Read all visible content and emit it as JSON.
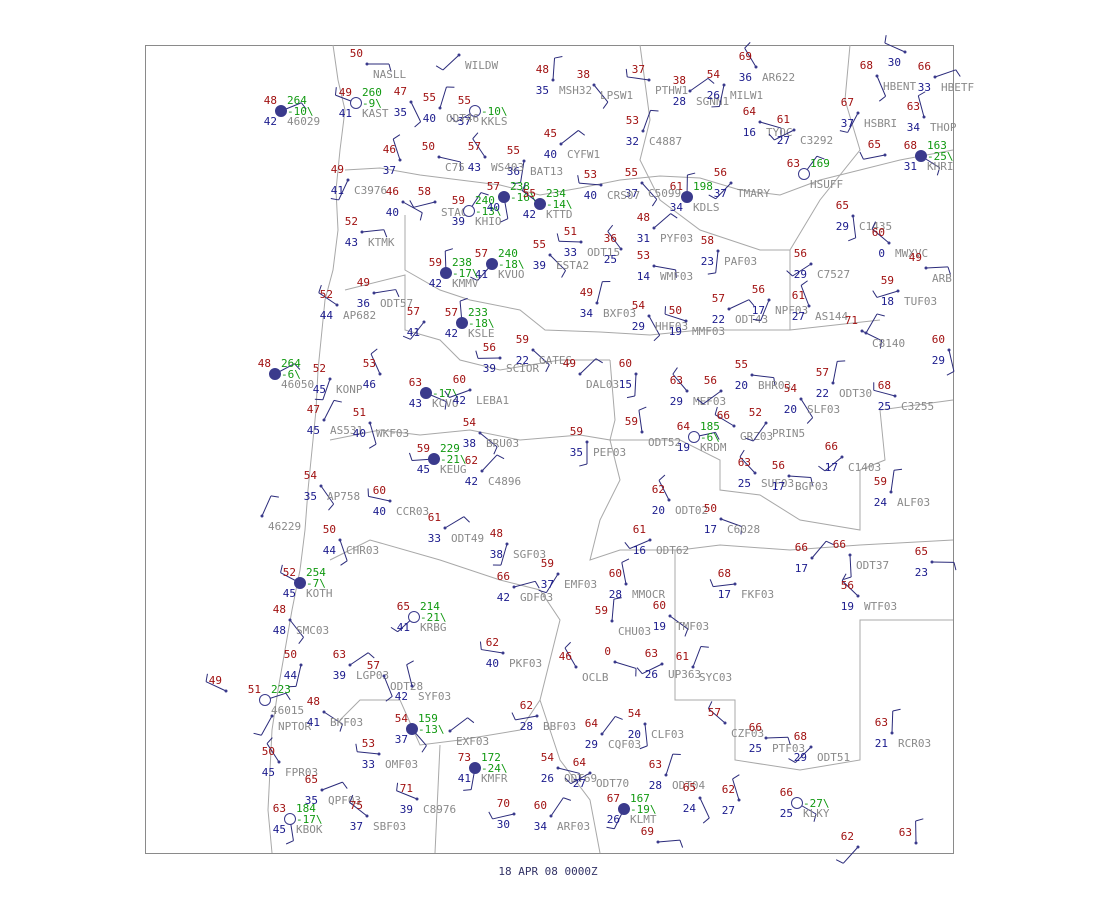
{
  "footer": "18 APR 08  0000Z",
  "stations": [
    {
      "id": "NASLL",
      "t": 50
    },
    {
      "id": "WILDW"
    },
    {
      "id": "MSH32",
      "t": 48,
      "d": 35
    },
    {
      "id": "LPSW1",
      "t": 38
    },
    {
      "id": "PTHW1",
      "t": 37
    },
    {
      "id": "SGNN1",
      "t": 38,
      "d": 28
    },
    {
      "id": "MILW1",
      "t": 54,
      "d": 26
    },
    {
      "id": "AR622",
      "t": 69,
      "d": 36
    },
    {
      "id": "TYOC",
      "t": 64,
      "d": 16
    },
    {
      "id": "C3292",
      "t": 61,
      "d": 27
    },
    {
      "id": "C4887",
      "t": 53,
      "d": 32
    },
    {
      "id": "HBENT",
      "t": 68
    },
    {
      "d": 30
    },
    {
      "id": "HBETF",
      "t": 66,
      "d": 33
    },
    {
      "id": "HSBRI",
      "t": 67,
      "d": 37
    },
    {
      "id": "THOP",
      "t": 63,
      "d": 34
    },
    {
      "id": "KHRI",
      "t": 68,
      "d": 31,
      "p": 163,
      "pt": "-25\\"
    },
    {
      "t": 65
    },
    {
      "id": "HSUFF",
      "t": 63,
      "p": 169
    },
    {
      "id": "C1435",
      "t": 65,
      "d": 29
    },
    {
      "id": "MWXVC",
      "t": 60,
      "d": 0
    },
    {
      "id": "ARB",
      "t": 49
    },
    {
      "id": "TMARY",
      "t": 56,
      "d": 37
    },
    {
      "id": "KDLS",
      "t": 61,
      "d": 34,
      "p": 198
    },
    {
      "id": "C5099",
      "t": 55,
      "d": 37
    },
    {
      "id": "CRS07",
      "t": 53,
      "d": 40
    },
    {
      "id": "CYFW1",
      "t": 45,
      "d": 40
    },
    {
      "id": "BAT13",
      "t": 55,
      "d": 36
    },
    {
      "id": "WS403",
      "t": 57,
      "d": 43
    },
    {
      "id": "C75",
      "t": 50
    },
    {
      "id": "KKLS",
      "t": 55,
      "d": 37,
      "pt": "-10\\"
    },
    {
      "id": "ODT46",
      "t": 55,
      "d": 40
    },
    {
      "t": 47,
      "d": 35
    },
    {
      "id": "KAST",
      "t": 49,
      "d": 41,
      "p": 260,
      "pt": "-9\\"
    },
    {
      "id": "46029",
      "t": 48,
      "d": 42,
      "p": 264,
      "pt": "-10\\"
    },
    {
      "id": "C3976",
      "t": 49,
      "d": 41
    },
    {
      "t": 46,
      "d": 37
    },
    {
      "t": 46,
      "d": 40
    },
    {
      "id": "STA03",
      "t": 58
    },
    {
      "id": "KHIO",
      "t": 59,
      "d": 39,
      "p": 240,
      "pt": "-13\\"
    },
    {
      "t": 57,
      "d": 40,
      "p": 238,
      "pt": "-16\\"
    },
    {
      "id": "KTTD",
      "t": 55,
      "d": 42,
      "p": 234,
      "pt": "-14\\"
    },
    {
      "id": "KTMK",
      "t": 52,
      "d": 43
    },
    {
      "id": "KVUO",
      "t": 57,
      "d": 41,
      "p": 240,
      "pt": "-18\\"
    },
    {
      "id": "KMMV",
      "t": 59,
      "d": 42,
      "p": 238,
      "pt": "-17\\"
    },
    {
      "id": "ESTA2",
      "t": 55,
      "d": 39
    },
    {
      "id": "ODT15",
      "t": 51,
      "d": 33
    },
    {
      "id": "PYF03",
      "t": 48,
      "d": 31
    },
    {
      "id": "PAF03",
      "t": 58,
      "d": 23
    },
    {
      "t": 36,
      "d": 25
    },
    {
      "id": "WMF03",
      "t": 53,
      "d": 14
    },
    {
      "id": "C7527",
      "t": 56,
      "d": 29
    },
    {
      "id": "BXF03",
      "t": 49,
      "d": 34
    },
    {
      "id": "HHF03",
      "t": 54,
      "d": 29
    },
    {
      "id": "MMF03",
      "t": 50,
      "d": 19
    },
    {
      "id": "ODT43",
      "t": 57,
      "d": 22
    },
    {
      "id": "NPF03",
      "t": 56,
      "d": 17
    },
    {
      "id": "AS144",
      "t": 61,
      "d": 27
    },
    {
      "t": 71
    },
    {
      "id": "TUF03",
      "t": 59,
      "d": 18
    },
    {
      "id": "C8140"
    },
    {
      "t": 60,
      "d": 29
    },
    {
      "id": "AP682",
      "t": 52,
      "d": 44
    },
    {
      "id": "ODT57",
      "t": 49,
      "d": 36
    },
    {
      "t": 57,
      "d": 41
    },
    {
      "id": "KSLE",
      "t": 57,
      "d": 42,
      "p": 233,
      "pt": "-18\\"
    },
    {
      "id": "GATES",
      "t": 59,
      "d": 22
    },
    {
      "id": "SCIOR",
      "t": 56,
      "d": 39
    },
    {
      "id": "DAL03",
      "t": 49
    },
    {
      "t": 60,
      "d": 15
    },
    {
      "id": "MEF03",
      "t": 63,
      "d": 29
    },
    {
      "id": "BHR03",
      "t": 55,
      "d": 20
    },
    {
      "t": 56
    },
    {
      "id": "ODT30",
      "t": 57,
      "d": 22
    },
    {
      "id": "SLF03",
      "t": 54,
      "d": 20
    },
    {
      "id": "C3255",
      "t": 68,
      "d": 25
    },
    {
      "id": "46050",
      "t": 48,
      "p": 264,
      "pt": "-6\\"
    },
    {
      "id": "KONP",
      "t": 52,
      "d": 45
    },
    {
      "t": 53,
      "d": 46
    },
    {
      "id": "KCVO",
      "t": 63,
      "d": 43,
      "pt": "-17\\"
    },
    {
      "id": "LEBA1",
      "t": 60,
      "d": 42
    },
    {
      "id": "AS531",
      "t": 47,
      "d": 45
    },
    {
      "id": "WKF03",
      "t": 51,
      "d": 40
    },
    {
      "id": "GRZ03",
      "t": 66
    },
    {
      "id": "KRDM",
      "t": 64,
      "d": 19,
      "p": 185,
      "pt": "-6\\"
    },
    {
      "id": "PRIN5",
      "t": 52
    },
    {
      "id": "ODT52",
      "t": 59
    },
    {
      "id": "BRU03",
      "t": 54,
      "d": 38
    },
    {
      "id": "KEUG",
      "t": 59,
      "d": 45,
      "p": 229,
      "pt": "-21\\"
    },
    {
      "id": "C4896",
      "t": 62,
      "d": 42
    },
    {
      "id": "PEF03",
      "t": 59,
      "d": 35
    },
    {
      "id": "SUF03",
      "t": 63,
      "d": 25
    },
    {
      "id": "BGF03",
      "t": 56,
      "d": 17
    },
    {
      "id": "C1403",
      "t": 66,
      "d": 17
    },
    {
      "id": "ALF03",
      "t": 59,
      "d": 24
    },
    {
      "id": "AP758",
      "t": 54,
      "d": 35
    },
    {
      "id": "CCR03",
      "t": 60,
      "d": 40
    },
    {
      "id": "ODT49",
      "t": 61,
      "d": 33
    },
    {
      "id": "SGF03",
      "t": 48,
      "d": 38
    },
    {
      "id": "ODT02",
      "t": 62,
      "d": 20
    },
    {
      "id": "C6028",
      "t": 50,
      "d": 17
    },
    {
      "id": "ODT62",
      "t": 61,
      "d": 16
    },
    {
      "id": "46229"
    },
    {
      "id": "CHR03",
      "t": 50,
      "d": 44
    },
    {
      "id": "KOTH",
      "t": 52,
      "d": 45,
      "p": 254,
      "pt": "-7\\"
    },
    {
      "id": "GDF03",
      "t": 66,
      "d": 42
    },
    {
      "id": "EMF03",
      "t": 59,
      "d": 37
    },
    {
      "id": "MMOCR",
      "t": 60,
      "d": 28
    },
    {
      "id": "TMF03",
      "t": 60,
      "d": 19
    },
    {
      "id": "FKF03",
      "t": 68,
      "d": 17
    },
    {
      "t": 66,
      "d": 17
    },
    {
      "id": "ODT37",
      "t": 66
    },
    {
      "id": "WTF03",
      "t": 56,
      "d": 19
    },
    {
      "t": 65,
      "d": 23
    },
    {
      "id": "KRBG",
      "t": 65,
      "d": 41,
      "p": 214,
      "pt": "-21\\"
    },
    {
      "id": "CHU03",
      "t": 59
    },
    {
      "id": "SMC03",
      "t": 48,
      "d": 48
    },
    {
      "id": "PKF03",
      "t": 62,
      "d": 40
    },
    {
      "id": "LGP03",
      "t": 63,
      "d": 39
    },
    {
      "t": 50,
      "d": 44
    },
    {
      "id": "OCLB",
      "t": 46
    },
    {
      "t": 0
    },
    {
      "id": "UP363",
      "t": 63,
      "d": 26
    },
    {
      "id": "SYC03",
      "t": 61
    },
    {
      "id": "ODT28",
      "t": 57
    },
    {
      "t": 49
    },
    {
      "id": "46015",
      "t": 51,
      "p": 223
    },
    {
      "id": "NPTOR"
    },
    {
      "id": "SYF03",
      "d": 42
    },
    {
      "id": "BKF03",
      "t": 48,
      "d": 41
    },
    {
      "id": "BBF03",
      "t": 62,
      "d": 28
    },
    {
      "id": "CQF03",
      "t": 64,
      "d": 29
    },
    {
      "id": "CLF03",
      "t": 54,
      "d": 20
    },
    {
      "id": "CZF03",
      "t": 57
    },
    {
      "id": "PTF03",
      "t": 66,
      "d": 25
    },
    {
      "id": "ODT51",
      "t": 68,
      "d": 29
    },
    {
      "id": "RCR03",
      "t": 63,
      "d": 21
    },
    {
      "t": 54,
      "d": 37,
      "p": 159,
      "pt": "-13\\"
    },
    {
      "id": "OMF03",
      "t": 53,
      "d": 33
    },
    {
      "id": "EXF03"
    },
    {
      "id": "KMFR",
      "t": 73,
      "d": 41,
      "p": 172,
      "pt": "-24\\"
    },
    {
      "id": "FPR03",
      "t": 50,
      "d": 45
    },
    {
      "id": "ODT69",
      "t": 54,
      "d": 26
    },
    {
      "id": "ODT70",
      "t": 64,
      "d": 27
    },
    {
      "id": "ODT04",
      "t": 63,
      "d": 28
    },
    {
      "t": 65,
      "d": 24
    },
    {
      "id": "C8976",
      "t": 71,
      "d": 39
    },
    {
      "id": "QPF03",
      "t": 65,
      "d": 35
    },
    {
      "id": "KLMT",
      "t": 67,
      "d": 26,
      "p": 167,
      "pt": "-19\\"
    },
    {
      "t": 62,
      "d": 27
    },
    {
      "id": "KLKY",
      "t": 66,
      "d": 25,
      "pt": "-27\\"
    },
    {
      "t": 70,
      "d": 30
    },
    {
      "id": "ARF03",
      "t": 60,
      "d": 34
    },
    {
      "id": "KBOK",
      "t": 63,
      "d": 45,
      "p": 184,
      "pt": "-17\\"
    },
    {
      "id": "SBF03",
      "t": 75,
      "d": 37
    },
    {
      "t": 69
    },
    {
      "t": 62
    },
    {
      "t": 63
    }
  ]
}
